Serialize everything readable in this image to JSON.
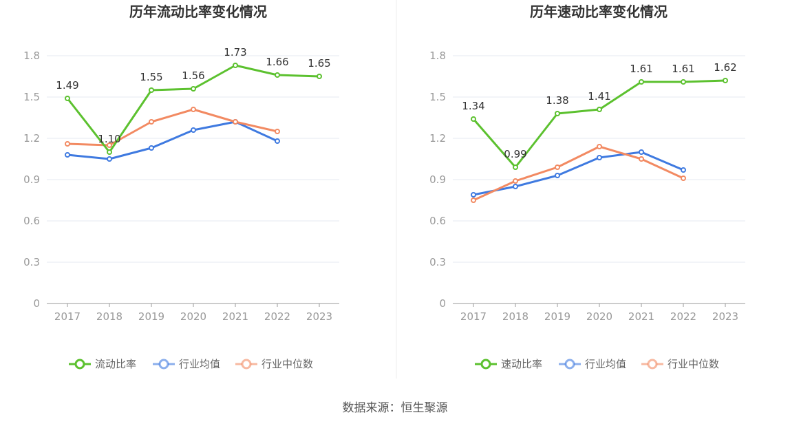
{
  "chart_data": [
    {
      "type": "line",
      "title": "历年流动比率变化情况",
      "categories": [
        "2017",
        "2018",
        "2019",
        "2020",
        "2021",
        "2022",
        "2023"
      ],
      "ylim": [
        0,
        1.8
      ],
      "yticks": [
        "0",
        "0.3",
        "0.6",
        "0.9",
        "1.2",
        "1.5",
        "1.8"
      ],
      "grid": true,
      "legend_position": "bottom",
      "series": [
        {
          "name": "流动比率",
          "color": "#5cc12f",
          "values": [
            1.49,
            1.1,
            1.55,
            1.56,
            1.73,
            1.66,
            1.65
          ],
          "labels": [
            "1.49",
            "1.10",
            "1.55",
            "1.56",
            "1.73",
            "1.66",
            "1.65"
          ]
        },
        {
          "name": "行业均值",
          "color": "#3f7ae0",
          "values": [
            1.08,
            1.05,
            1.13,
            1.26,
            1.32,
            1.18,
            null
          ]
        },
        {
          "name": "行业中位数",
          "color": "#f28a62",
          "values": [
            1.16,
            1.15,
            1.32,
            1.41,
            1.32,
            1.25,
            null
          ]
        }
      ]
    },
    {
      "type": "line",
      "title": "历年速动比率变化情况",
      "categories": [
        "2017",
        "2018",
        "2019",
        "2020",
        "2021",
        "2022",
        "2023"
      ],
      "ylim": [
        0,
        1.8
      ],
      "yticks": [
        "0",
        "0.3",
        "0.6",
        "0.9",
        "1.2",
        "1.5",
        "1.8"
      ],
      "grid": true,
      "legend_position": "bottom",
      "series": [
        {
          "name": "速动比率",
          "color": "#5cc12f",
          "values": [
            1.34,
            0.99,
            1.38,
            1.41,
            1.61,
            1.61,
            1.62
          ],
          "labels": [
            "1.34",
            "0.99",
            "1.38",
            "1.41",
            "1.61",
            "1.61",
            "1.62"
          ]
        },
        {
          "name": "行业均值",
          "color": "#3f7ae0",
          "values": [
            0.79,
            0.85,
            0.93,
            1.06,
            1.1,
            0.97,
            null
          ]
        },
        {
          "name": "行业中位数",
          "color": "#f28a62",
          "values": [
            0.75,
            0.89,
            0.99,
            1.14,
            1.05,
            0.91,
            null
          ]
        }
      ]
    }
  ],
  "footer": {
    "source": "数据来源：恒生聚源"
  }
}
